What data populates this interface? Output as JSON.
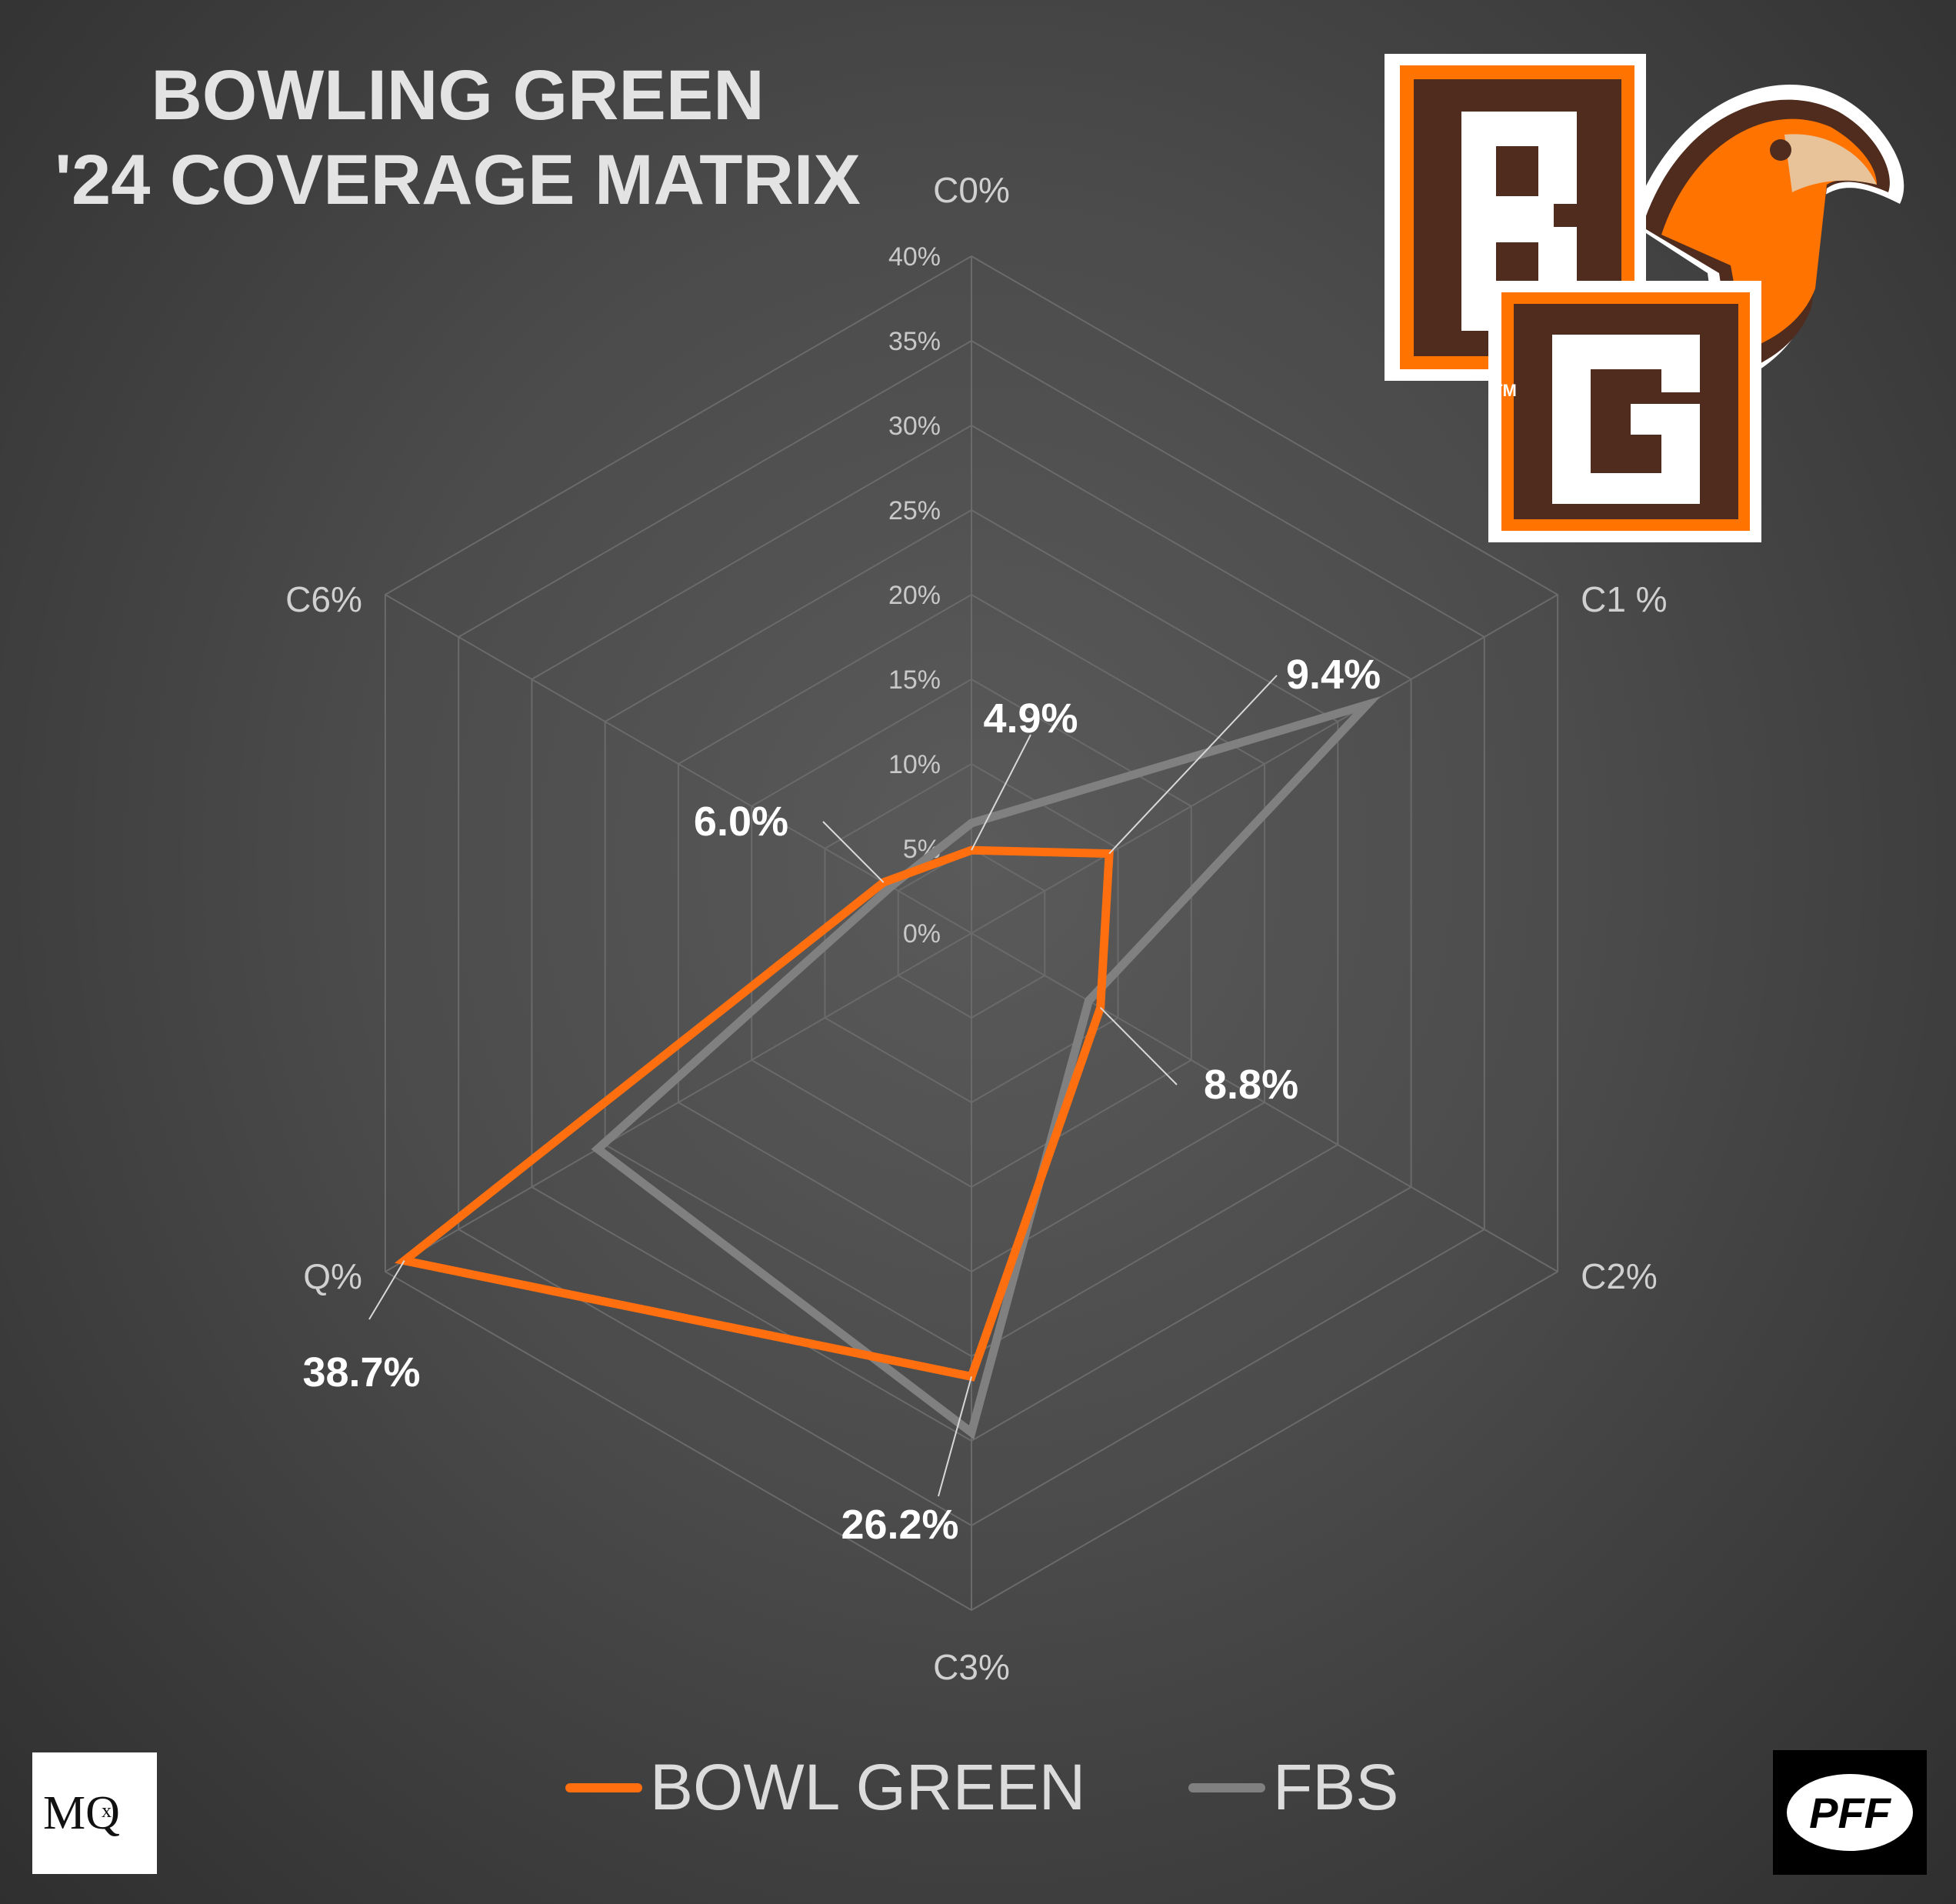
{
  "title": {
    "line1": "BOWLING GREEN",
    "line2": "'24 COVERAGE MATRIX"
  },
  "colors": {
    "bowling_green": "#ff6f0f",
    "fbs": "#808080",
    "grid": "#6a6a6a",
    "brown": "#4f2c1d",
    "orange": "#ff7300"
  },
  "logos": {
    "team": "BG",
    "team_mark": "TM",
    "credit_left": "MQ",
    "credit_left_sub": "x",
    "credit_right": "PFF"
  },
  "chart_data": {
    "type": "radar",
    "axes": [
      "C0%",
      "C1 %",
      "C2%",
      "C3%",
      "Q%",
      "C6%"
    ],
    "rlim": [
      0,
      40
    ],
    "ticks": [
      "0%",
      "5%",
      "10%",
      "15%",
      "20%",
      "25%",
      "30%",
      "35%",
      "40%"
    ],
    "grid": true,
    "legend_position": "bottom",
    "series": [
      {
        "name": "BOWL GREEN",
        "values": [
          4.9,
          9.4,
          8.8,
          26.2,
          38.7,
          6.0
        ],
        "data_labels": [
          "4.9%",
          "9.4%",
          "8.8%",
          "26.2%",
          "38.7%",
          "6.0%"
        ]
      },
      {
        "name": "FBS",
        "values": [
          6.5,
          27.0,
          8.0,
          29.5,
          25.5,
          5.5
        ]
      }
    ]
  }
}
